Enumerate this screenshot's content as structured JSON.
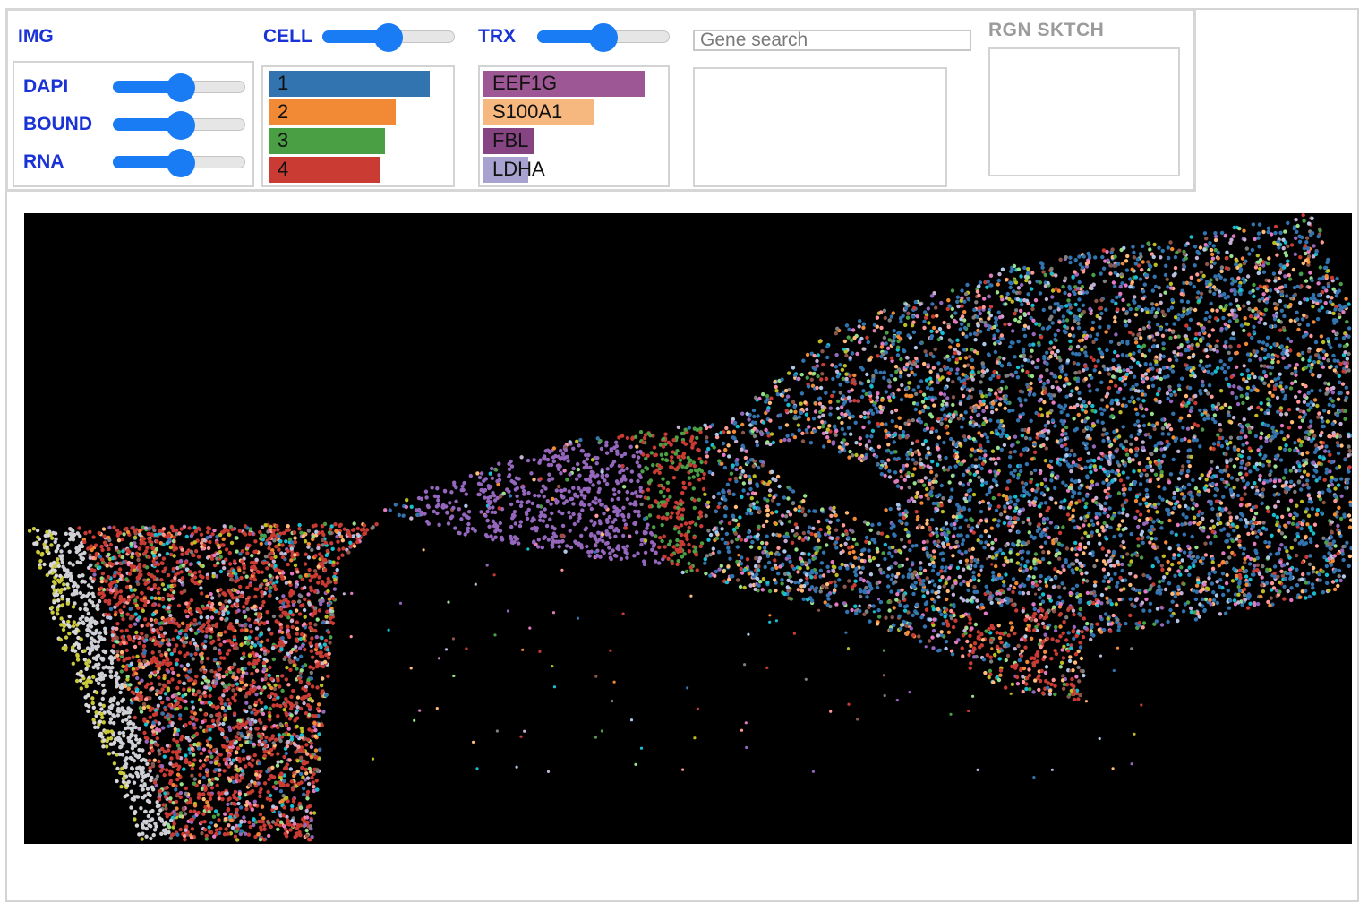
{
  "img": {
    "header": "IMG",
    "layers": [
      {
        "label": "DAPI",
        "value": 0.51
      },
      {
        "label": "BOUND",
        "value": 0.51
      },
      {
        "label": "RNA",
        "value": 0.51
      }
    ]
  },
  "cell": {
    "header": "CELL",
    "opacity": 0.49,
    "clusters": [
      {
        "label": "1",
        "color": "#3274b0",
        "count": 1.0
      },
      {
        "label": "2",
        "color": "#f28a35",
        "count": 0.79
      },
      {
        "label": "3",
        "color": "#4a9e44",
        "count": 0.72
      },
      {
        "label": "4",
        "color": "#ca3b34",
        "count": 0.69
      }
    ]
  },
  "trx": {
    "header": "TRX",
    "opacity": 0.49,
    "genes": [
      {
        "label": "EEF1G",
        "color": "#9e5795",
        "count": 1.0
      },
      {
        "label": "S100A1",
        "color": "#f6b87e",
        "count": 0.69
      },
      {
        "label": "FBL",
        "color": "#874483",
        "count": 0.31
      },
      {
        "label": "LDHA",
        "color": "#a7a2cf",
        "count": 0.28
      }
    ]
  },
  "search": {
    "placeholder": "Gene search",
    "value": ""
  },
  "rgn": {
    "header": "RGN SKTCH"
  },
  "viewer": {
    "background": "#000000",
    "palette": [
      "#3274b0",
      "#f28a35",
      "#4a9e44",
      "#ca3b34",
      "#9467bd",
      "#8c564b",
      "#e17ac1",
      "#7f7f7f",
      "#bcbd22",
      "#17becf",
      "#aec7e8",
      "#ffbb78",
      "#98df8a",
      "#ff9896",
      "#c5b0d5"
    ]
  }
}
